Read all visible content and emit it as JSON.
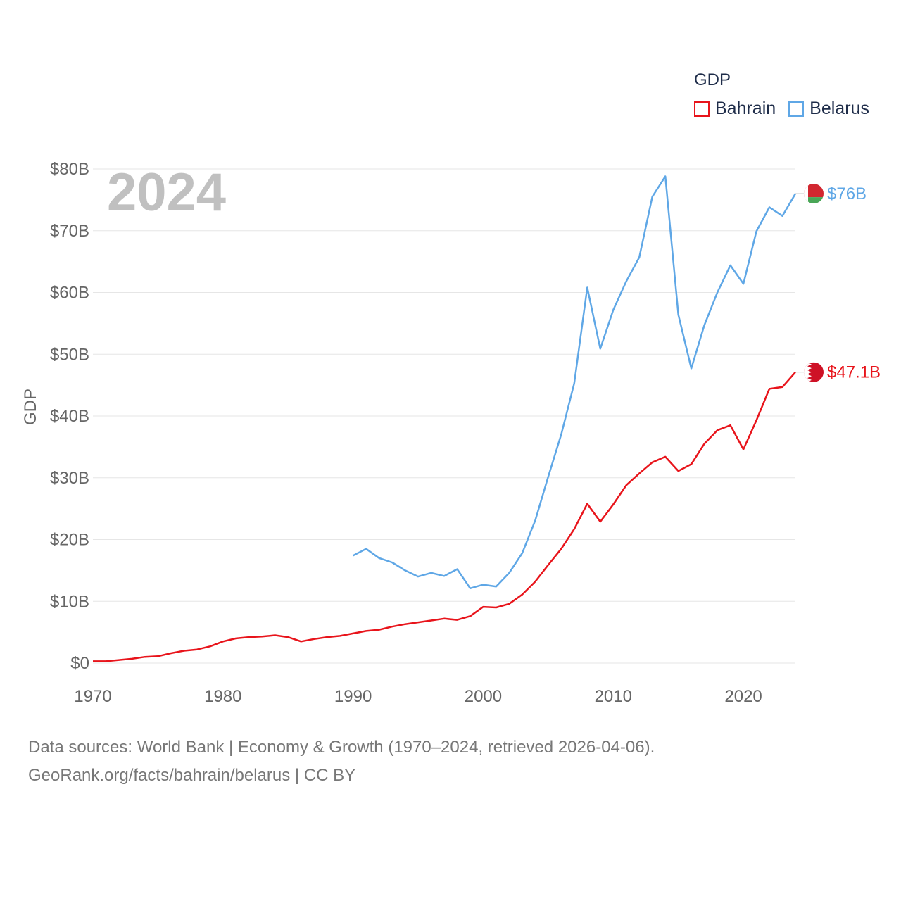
{
  "legend": {
    "title": "GDP",
    "items": [
      {
        "label": "Bahrain",
        "color": "#e8141b"
      },
      {
        "label": "Belarus",
        "color": "#5fa7e6"
      }
    ]
  },
  "footer": {
    "line1": "Data sources: World Bank | Economy & Growth (1970–2024, retrieved 2026-04-06).",
    "line2": "GeoRank.org/facts/bahrain/belarus | CC BY"
  },
  "chart_data": {
    "type": "line",
    "title": "GDP",
    "year_label": "2024",
    "xlabel": "",
    "ylabel": "GDP",
    "xlim": [
      1970,
      2024
    ],
    "ylim": [
      0,
      80
    ],
    "x_ticks": [
      1970,
      1980,
      1990,
      2000,
      2010,
      2020
    ],
    "y_ticks": [
      {
        "value": 0,
        "label": "$0"
      },
      {
        "value": 10,
        "label": "$10B"
      },
      {
        "value": 20,
        "label": "$20B"
      },
      {
        "value": 30,
        "label": "$30B"
      },
      {
        "value": 40,
        "label": "$40B"
      },
      {
        "value": 50,
        "label": "$50B"
      },
      {
        "value": 60,
        "label": "$60B"
      },
      {
        "value": 70,
        "label": "$70B"
      },
      {
        "value": 80,
        "label": "$80B"
      }
    ],
    "grid": true,
    "series": [
      {
        "name": "Bahrain",
        "color": "#e8141b",
        "end_label": "$47.1B",
        "x": [
          1970,
          1971,
          1972,
          1973,
          1974,
          1975,
          1976,
          1977,
          1978,
          1979,
          1980,
          1981,
          1982,
          1983,
          1984,
          1985,
          1986,
          1987,
          1988,
          1989,
          1990,
          1991,
          1992,
          1993,
          1994,
          1995,
          1996,
          1997,
          1998,
          1999,
          2000,
          2001,
          2002,
          2003,
          2004,
          2005,
          2006,
          2007,
          2008,
          2009,
          2010,
          2011,
          2012,
          2013,
          2014,
          2015,
          2016,
          2017,
          2018,
          2019,
          2020,
          2021,
          2022,
          2023,
          2024
        ],
        "values": [
          0.3,
          0.3,
          0.5,
          0.7,
          1.0,
          1.1,
          1.6,
          2.0,
          2.2,
          2.7,
          3.5,
          4.0,
          4.2,
          4.3,
          4.5,
          4.2,
          3.5,
          3.9,
          4.2,
          4.4,
          4.8,
          5.2,
          5.4,
          5.9,
          6.3,
          6.6,
          6.9,
          7.2,
          7.0,
          7.6,
          9.1,
          9.0,
          9.6,
          11.1,
          13.2,
          15.9,
          18.5,
          21.7,
          25.8,
          22.9,
          25.7,
          28.8,
          30.7,
          32.5,
          33.4,
          31.1,
          32.2,
          35.5,
          37.7,
          38.5,
          34.6,
          39.3,
          44.4,
          44.7,
          47.1
        ]
      },
      {
        "name": "Belarus",
        "color": "#5fa7e6",
        "end_label": "$76B",
        "x": [
          1990,
          1991,
          1992,
          1993,
          1994,
          1995,
          1996,
          1997,
          1998,
          1999,
          2000,
          2001,
          2002,
          2003,
          2004,
          2005,
          2006,
          2007,
          2008,
          2009,
          2010,
          2011,
          2012,
          2013,
          2014,
          2015,
          2016,
          2017,
          2018,
          2019,
          2020,
          2021,
          2022,
          2023,
          2024
        ],
        "values": [
          17.4,
          18.5,
          17.0,
          16.3,
          15.0,
          14.0,
          14.6,
          14.1,
          15.2,
          12.1,
          12.7,
          12.4,
          14.6,
          17.8,
          23.1,
          30.2,
          37.0,
          45.3,
          60.8,
          50.9,
          57.2,
          61.8,
          65.7,
          75.5,
          78.8,
          56.4,
          47.7,
          54.7,
          60.0,
          64.4,
          61.4,
          69.9,
          73.8,
          72.4,
          76.0
        ]
      }
    ]
  }
}
